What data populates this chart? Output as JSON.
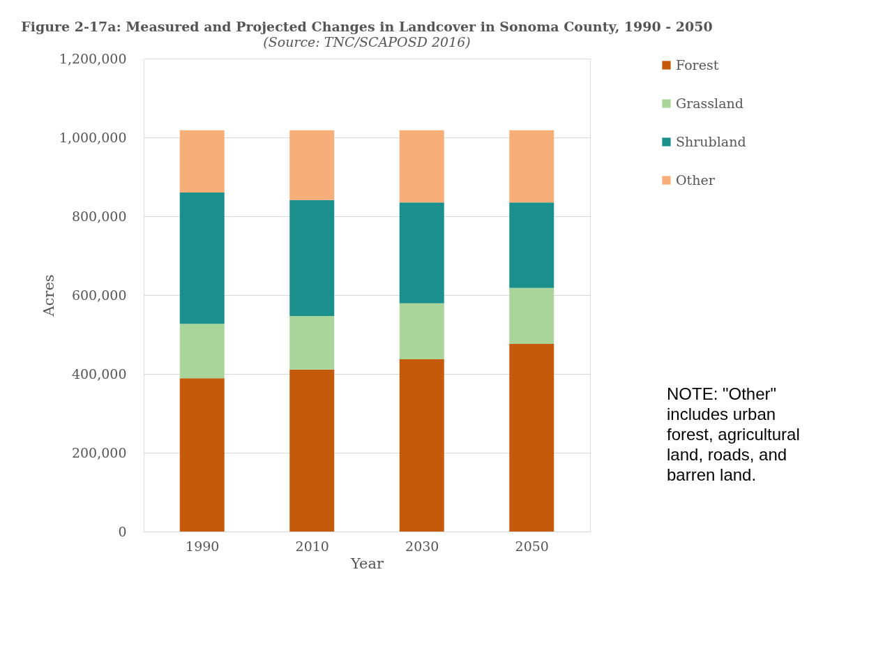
{
  "chart_data": {
    "type": "bar",
    "stacked": true,
    "title": "Figure 2-17a: Measured and Projected Changes in Landcover in Sonoma County, 1990 - 2050",
    "subtitle": "(Source: TNC/SCAPOSD 2016)",
    "xlabel": "Year",
    "ylabel": "Acres",
    "categories": [
      "1990",
      "2010",
      "2030",
      "2050"
    ],
    "series": [
      {
        "name": "Forest",
        "color": "#c55a0b",
        "values": [
          389000,
          411000,
          437000,
          476000
        ]
      },
      {
        "name": "Grassland",
        "color": "#a9d59b",
        "values": [
          138000,
          136000,
          142000,
          142000
        ]
      },
      {
        "name": "Shrubland",
        "color": "#1b8f8c",
        "values": [
          333000,
          294000,
          256000,
          217000
        ]
      },
      {
        "name": "Other",
        "color": "#f8ae78",
        "values": [
          158000,
          177000,
          183000,
          183000
        ]
      }
    ],
    "ylim": [
      0,
      1200000
    ],
    "yticks": [
      {
        "value": 0,
        "label": "0"
      },
      {
        "value": 200000,
        "label": "200,000"
      },
      {
        "value": 400000,
        "label": "400,000"
      },
      {
        "value": 600000,
        "label": "600,000"
      },
      {
        "value": 800000,
        "label": "800,000"
      },
      {
        "value": 1000000,
        "label": "1,000,000"
      },
      {
        "value": 1200000,
        "label": "1,200,000"
      }
    ],
    "grid": "y",
    "legend": "right",
    "annotations": [
      "NOTE:  \"Other\" includes urban forest, agricultural land, roads, and barren land."
    ]
  }
}
